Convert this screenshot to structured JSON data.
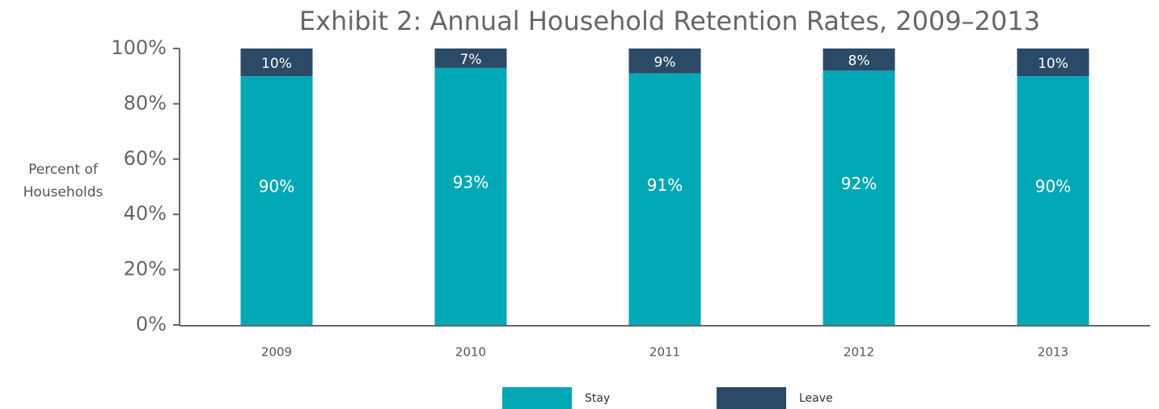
{
  "chart_data": {
    "type": "stacked_bar",
    "title": "Exhibit 2: Annual Household Retention Rates, 2009–2013",
    "y_label": "Percent of Households",
    "categories": [
      "2009",
      "2010",
      "2011",
      "2012",
      "2013"
    ],
    "series": [
      {
        "name": "Stay",
        "color": "#00a8b5",
        "values": [
          90,
          93,
          91,
          92,
          90
        ],
        "value_labels": [
          "90%",
          "93%",
          "91%",
          "92%",
          "90%"
        ]
      },
      {
        "name": "Leave",
        "color": "#2b4a67",
        "values": [
          10,
          7,
          9,
          8,
          10
        ],
        "value_labels": [
          "10%",
          "7%",
          "9%",
          "8%",
          "10%"
        ]
      }
    ],
    "ylim": [
      0,
      100
    ],
    "yticks": [
      {
        "value": 0,
        "label": "0%"
      },
      {
        "value": 20,
        "label": "20%"
      },
      {
        "value": 40,
        "label": "40%"
      },
      {
        "value": 60,
        "label": "60%"
      },
      {
        "value": 80,
        "label": "80%"
      },
      {
        "value": 100,
        "label": "100%"
      }
    ],
    "legend": "bottom"
  }
}
